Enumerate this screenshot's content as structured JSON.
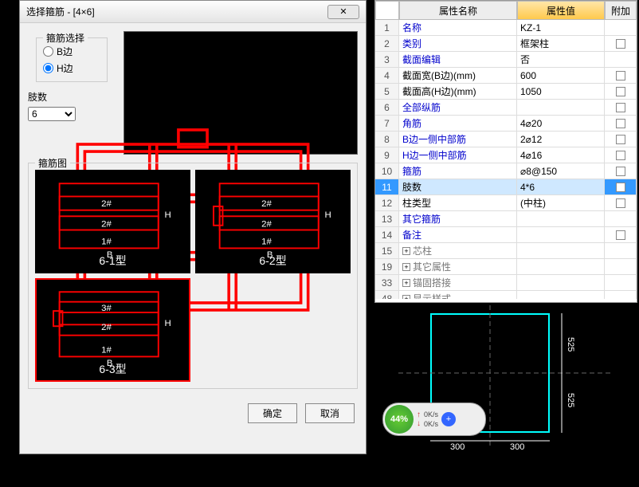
{
  "dialog": {
    "title": "选择箍筋 - [4×6]",
    "group_select": "箍筋选择",
    "radio_b": "B边",
    "radio_h": "H边",
    "radio_selected": "H",
    "zhishu_label": "肢数",
    "zhishu_value": "6",
    "group_tu": "箍筋图",
    "types": [
      {
        "label": "6-1型",
        "selected": false
      },
      {
        "label": "6-2型",
        "selected": false
      },
      {
        "label": "6-3型",
        "selected": true
      }
    ],
    "inner_labels": {
      "h": "H",
      "b": "B",
      "n1": "1#",
      "n2": "2#",
      "n3": "3#"
    },
    "ok": "确定",
    "cancel": "取消"
  },
  "props": {
    "head_name": "属性名称",
    "head_val": "属性值",
    "head_add": "附加",
    "rows": [
      {
        "n": "1",
        "name": "名称",
        "val": "KZ-1",
        "blue": true,
        "chk": false
      },
      {
        "n": "2",
        "name": "类别",
        "val": "框架柱",
        "blue": true,
        "chk": true
      },
      {
        "n": "3",
        "name": "截面编辑",
        "val": "否",
        "blue": true,
        "chk": false
      },
      {
        "n": "4",
        "name": "截面宽(B边)(mm)",
        "val": "600",
        "blue": false,
        "chk": true
      },
      {
        "n": "5",
        "name": "截面高(H边)(mm)",
        "val": "1050",
        "blue": false,
        "chk": true
      },
      {
        "n": "6",
        "name": "全部纵筋",
        "val": "",
        "blue": true,
        "chk": true
      },
      {
        "n": "7",
        "name": "角筋",
        "val": "4⌀20",
        "blue": true,
        "chk": true
      },
      {
        "n": "8",
        "name": "B边一侧中部筋",
        "val": "2⌀12",
        "blue": true,
        "chk": true
      },
      {
        "n": "9",
        "name": "H边一侧中部筋",
        "val": "4⌀16",
        "blue": true,
        "chk": true
      },
      {
        "n": "10",
        "name": "箍筋",
        "val": "⌀8@150",
        "blue": true,
        "chk": true
      },
      {
        "n": "11",
        "name": "肢数",
        "val": "4*6",
        "blue": false,
        "chk": true,
        "sel": true
      },
      {
        "n": "12",
        "name": "柱类型",
        "val": "(中柱)",
        "blue": false,
        "chk": true
      },
      {
        "n": "13",
        "name": "其它箍筋",
        "val": "",
        "blue": true,
        "chk": false
      },
      {
        "n": "14",
        "name": "备注",
        "val": "",
        "blue": true,
        "chk": true
      }
    ],
    "exp_rows": [
      {
        "n": "15",
        "name": "芯柱"
      },
      {
        "n": "19",
        "name": "其它属性"
      },
      {
        "n": "33",
        "name": "锚固搭接"
      },
      {
        "n": "48",
        "name": "显示样式"
      }
    ]
  },
  "section": {
    "dim_w": "300",
    "dim_w2": "300",
    "dim_h": "525",
    "dim_h2": "525"
  },
  "widget": {
    "pct": "44%",
    "up": "0K/s",
    "dn": "0K/s"
  }
}
